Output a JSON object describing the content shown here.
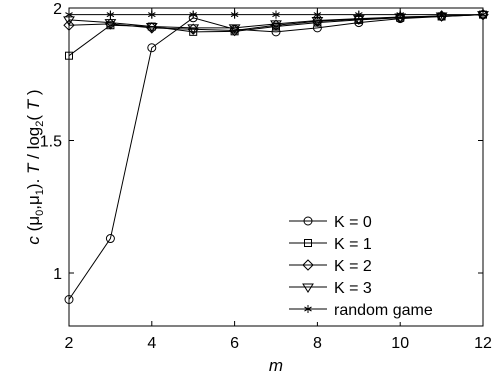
{
  "chart_data": {
    "type": "line",
    "title": "",
    "xlabel": "m",
    "ylabel": "c (μ0,μ1). T / log2( T )",
    "ylabel_parts": {
      "c": "c",
      "open": " (",
      "mu": "μ",
      "sub0": "0",
      "comma": ",",
      "sub1": "1",
      "close": "). ",
      "T1": "T",
      "slash": " / log",
      "sub2": "2",
      "open2": "( ",
      "T2": "T",
      "close2": " )"
    },
    "xlim": [
      2,
      12
    ],
    "ylim": [
      0.8,
      2.0
    ],
    "x_ticks": [
      2,
      4,
      6,
      8,
      10,
      12
    ],
    "x_tick_labels": [
      "2",
      "4",
      "6",
      "8",
      "10",
      "12"
    ],
    "y_ticks": [
      1.0,
      1.5,
      2.0
    ],
    "y_tick_labels": [
      "1",
      "1.5",
      "2"
    ],
    "grid": false,
    "legend_position": "bottom-right",
    "x": [
      2,
      3,
      4,
      5,
      6,
      7,
      8,
      9,
      10,
      11,
      12
    ],
    "series": [
      {
        "name": "K = 0",
        "marker": "circle",
        "values": [
          0.9,
          1.13,
          1.85,
          1.963,
          1.92,
          1.91,
          1.925,
          1.945,
          1.96,
          1.968,
          1.975
        ]
      },
      {
        "name": "K = 1",
        "marker": "square",
        "values": [
          1.82,
          1.935,
          1.93,
          1.91,
          1.912,
          1.93,
          1.945,
          1.955,
          1.963,
          1.968,
          1.975
        ]
      },
      {
        "name": "K = 2",
        "marker": "diamond",
        "values": [
          1.935,
          1.94,
          1.925,
          1.92,
          1.915,
          1.935,
          1.95,
          1.958,
          1.965,
          1.97,
          1.975
        ]
      },
      {
        "name": "K = 3",
        "marker": "triangle-down",
        "values": [
          1.955,
          1.945,
          1.93,
          1.925,
          1.925,
          1.94,
          1.953,
          1.96,
          1.966,
          1.97,
          1.975
        ]
      },
      {
        "name": "random game",
        "marker": "star",
        "values": [
          1.975,
          1.975,
          1.975,
          1.975,
          1.975,
          1.975,
          1.975,
          1.975,
          1.975,
          1.975,
          1.975
        ]
      }
    ]
  }
}
